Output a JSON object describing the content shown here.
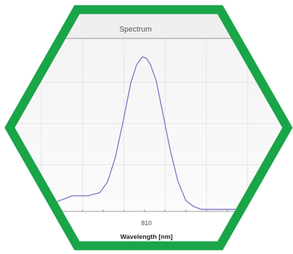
{
  "chart_data": {
    "type": "line",
    "title": "Spectrum",
    "xlabel": "Wavelength [nm]",
    "ylabel": "",
    "xlim": [
      740,
      880
    ],
    "ylim": [
      0,
      1.05
    ],
    "x_ticks": [
      810
    ],
    "x_tick_labels": [
      "810"
    ],
    "grid": true,
    "legend": "none",
    "series": [
      {
        "color": "#7a78c8",
        "x": [
          740,
          752,
          764,
          772,
          780,
          786,
          790,
          794,
          798,
          802,
          805,
          808,
          810,
          812,
          815,
          818,
          822,
          826,
          830,
          834,
          838,
          845,
          860,
          880
        ],
        "y": [
          0.0,
          0.0,
          0.05,
          0.09,
          0.09,
          0.11,
          0.18,
          0.34,
          0.58,
          0.84,
          0.96,
          1.01,
          1.0,
          0.96,
          0.85,
          0.66,
          0.4,
          0.19,
          0.06,
          0.02,
          0.0,
          0.0,
          0.0,
          0.0
        ]
      }
    ]
  },
  "colors": {
    "frame": "#1aa548",
    "plot_line": "#7a78c8",
    "grid": "#e3e3e3",
    "title_bar": "#efefef"
  }
}
